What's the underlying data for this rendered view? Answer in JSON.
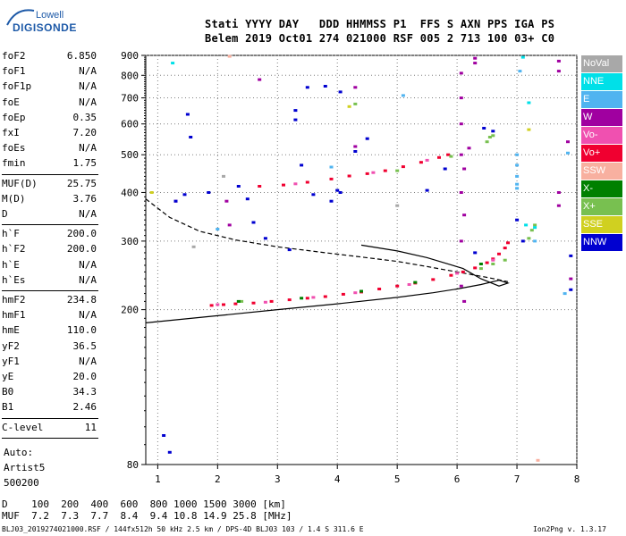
{
  "logo": {
    "line1": "Lowell",
    "line2": "DIGISONDE"
  },
  "header": {
    "row1": "Stati YYYY DAY   DDD HHMMSS P1  FFS S AXN PPS IGA PS",
    "row2": "Belem 2019 Oct01 274 021000 RSF 005 2 713 100 03+ C0"
  },
  "params_group1": [
    {
      "name": "foF2",
      "value": "6.850"
    },
    {
      "name": "foF1",
      "value": "N/A"
    },
    {
      "name": "foF1p",
      "value": "N/A"
    },
    {
      "name": "foE",
      "value": "N/A"
    },
    {
      "name": "foEp",
      "value": "0.35"
    },
    {
      "name": "fxI",
      "value": "7.20"
    },
    {
      "name": "foEs",
      "value": "N/A"
    },
    {
      "name": "fmin",
      "value": "1.75"
    }
  ],
  "params_group2": [
    {
      "name": "MUF(D)",
      "value": "25.75"
    },
    {
      "name": "M(D)",
      "value": "3.76"
    },
    {
      "name": "D",
      "value": "N/A"
    }
  ],
  "params_group3": [
    {
      "name": "h`F",
      "value": "200.0"
    },
    {
      "name": "h`F2",
      "value": "200.0"
    },
    {
      "name": "h`E",
      "value": "N/A"
    },
    {
      "name": "h`Es",
      "value": "N/A"
    }
  ],
  "params_group4": [
    {
      "name": "hmF2",
      "value": "234.8"
    },
    {
      "name": "hmF1",
      "value": "N/A"
    },
    {
      "name": "hmE",
      "value": "110.0"
    },
    {
      "name": "yF2",
      "value": "36.5"
    },
    {
      "name": "yF1",
      "value": "N/A"
    },
    {
      "name": "yE",
      "value": "20.0"
    },
    {
      "name": "B0",
      "value": "34.3"
    },
    {
      "name": "B1",
      "value": "2.46"
    }
  ],
  "params_group5": [
    {
      "name": "C-level",
      "value": "11"
    }
  ],
  "autoscaler": {
    "line1": "Auto:",
    "line2": "Artist5",
    "line3": "500200"
  },
  "footer": {
    "row1": "D    100  200  400  600  800 1000 1500 3000 [km]",
    "row2": "MUF  7.2  7.3  7.7  8.4  9.4 10.8 14.9 25.8 [MHz]",
    "row3": "BLJ03_2019274021000.RSF / 144fx512h 50 kHz 2.5 km / DPS-4D BLJ03 103 / 1.4 S 311.6 E",
    "version": "Ion2Png v. 1.3.17"
  },
  "legend": [
    {
      "label": "NoVal",
      "color": "#a8a8a8"
    },
    {
      "label": "NNE",
      "color": "#00e0e8"
    },
    {
      "label": "E",
      "color": "#50b4f0"
    },
    {
      "label": "W",
      "color": "#a000a0"
    },
    {
      "label": "Vo-",
      "color": "#f050b0"
    },
    {
      "label": "Vo+",
      "color": "#f00030"
    },
    {
      "label": "SSW",
      "color": "#f8b0a0"
    },
    {
      "label": "X-",
      "color": "#008000"
    },
    {
      "label": "X+",
      "color": "#78c050"
    },
    {
      "label": "SSE",
      "color": "#d0d020"
    },
    {
      "label": "NNW",
      "color": "#0000d0"
    }
  ],
  "chart_data": {
    "type": "scatter",
    "xlim": [
      0.8,
      8.0
    ],
    "ylim": [
      80,
      900
    ],
    "y_scale": "log",
    "grid": true,
    "x_ticks": [
      1,
      2,
      3,
      4,
      5,
      6,
      7,
      8
    ],
    "y_ticks": [
      80,
      200,
      300,
      400,
      500,
      600,
      700,
      800,
      900
    ],
    "series": [
      {
        "name": "Vo+",
        "color": "#f00030",
        "points": [
          [
            1.9,
            205
          ],
          [
            2.1,
            206
          ],
          [
            2.3,
            207
          ],
          [
            2.6,
            208
          ],
          [
            2.9,
            210
          ],
          [
            3.2,
            212
          ],
          [
            3.5,
            214
          ],
          [
            3.8,
            216
          ],
          [
            4.1,
            219
          ],
          [
            4.4,
            222
          ],
          [
            4.7,
            226
          ],
          [
            5.0,
            230
          ],
          [
            5.3,
            234
          ],
          [
            5.6,
            239
          ],
          [
            5.9,
            245
          ],
          [
            6.1,
            250
          ],
          [
            6.3,
            256
          ],
          [
            6.5,
            264
          ],
          [
            6.6,
            270
          ],
          [
            6.7,
            278
          ],
          [
            6.8,
            288
          ],
          [
            6.85,
            297
          ],
          [
            2.7,
            415
          ],
          [
            3.1,
            418
          ],
          [
            3.5,
            425
          ],
          [
            3.9,
            433
          ],
          [
            4.2,
            441
          ],
          [
            4.5,
            447
          ],
          [
            4.8,
            455
          ],
          [
            5.1,
            466
          ],
          [
            5.4,
            478
          ],
          [
            5.7,
            492
          ],
          [
            5.85,
            500
          ]
        ]
      },
      {
        "name": "Vo-",
        "color": "#f050b0",
        "points": [
          [
            2.0,
            206
          ],
          [
            2.8,
            209
          ],
          [
            3.6,
            215
          ],
          [
            4.3,
            221
          ],
          [
            5.2,
            232
          ],
          [
            6.0,
            248
          ],
          [
            6.6,
            268
          ],
          [
            3.3,
            421
          ],
          [
            4.6,
            450
          ],
          [
            5.5,
            484
          ]
        ]
      },
      {
        "name": "W",
        "color": "#a000a0",
        "points": [
          [
            6.07,
            230
          ],
          [
            6.07,
            300
          ],
          [
            6.07,
            400
          ],
          [
            6.07,
            500
          ],
          [
            6.07,
            600
          ],
          [
            6.07,
            700
          ],
          [
            6.07,
            810
          ],
          [
            6.12,
            210
          ],
          [
            6.12,
            350
          ],
          [
            6.12,
            460
          ],
          [
            6.2,
            520
          ],
          [
            6.3,
            885
          ],
          [
            6.3,
            860
          ],
          [
            7.7,
            870
          ],
          [
            7.7,
            820
          ],
          [
            7.7,
            400
          ],
          [
            7.7,
            370
          ],
          [
            7.85,
            540
          ],
          [
            7.9,
            240
          ],
          [
            4.3,
            525
          ],
          [
            4.3,
            745
          ],
          [
            2.15,
            380
          ],
          [
            2.2,
            330
          ],
          [
            1.3,
            380
          ],
          [
            2.7,
            780
          ]
        ]
      },
      {
        "name": "X+",
        "color": "#78c050",
        "points": [
          [
            6.4,
            255
          ],
          [
            6.6,
            262
          ],
          [
            6.8,
            268
          ],
          [
            7.2,
            305
          ],
          [
            7.25,
            320
          ],
          [
            7.3,
            330
          ],
          [
            6.5,
            540
          ],
          [
            6.55,
            555
          ],
          [
            6.6,
            560
          ],
          [
            4.3,
            675
          ],
          [
            2.4,
            210
          ],
          [
            5.9,
            495
          ],
          [
            5.0,
            455
          ]
        ]
      },
      {
        "name": "E",
        "color": "#50b4f0",
        "points": [
          [
            7.0,
            440
          ],
          [
            7.0,
            470
          ],
          [
            7.0,
            500
          ],
          [
            7.0,
            420
          ],
          [
            7.0,
            410
          ],
          [
            7.05,
            820
          ],
          [
            7.3,
            300
          ],
          [
            7.8,
            220
          ],
          [
            7.85,
            505
          ],
          [
            2.0,
            322
          ],
          [
            3.9,
            465
          ],
          [
            5.1,
            710
          ]
        ]
      },
      {
        "name": "NNW",
        "color": "#0000d0",
        "points": [
          [
            3.5,
            745
          ],
          [
            3.8,
            750
          ],
          [
            4.05,
            725
          ],
          [
            4.0,
            405
          ],
          [
            4.05,
            400
          ],
          [
            1.5,
            635
          ],
          [
            1.55,
            555
          ],
          [
            1.45,
            395
          ],
          [
            1.3,
            380
          ],
          [
            1.85,
            400
          ],
          [
            2.35,
            415
          ],
          [
            3.3,
            650
          ],
          [
            3.3,
            615
          ],
          [
            3.4,
            470
          ],
          [
            3.6,
            395
          ],
          [
            4.5,
            550
          ],
          [
            4.3,
            510
          ],
          [
            3.9,
            380
          ],
          [
            2.5,
            385
          ],
          [
            2.6,
            335
          ],
          [
            2.8,
            305
          ],
          [
            3.2,
            285
          ],
          [
            1.2,
            86
          ],
          [
            7.0,
            340
          ],
          [
            7.1,
            300
          ],
          [
            6.3,
            280
          ],
          [
            6.45,
            585
          ],
          [
            6.6,
            575
          ],
          [
            5.8,
            460
          ],
          [
            5.5,
            405
          ],
          [
            7.9,
            275
          ],
          [
            7.9,
            225
          ],
          [
            1.1,
            95
          ]
        ]
      },
      {
        "name": "NNE",
        "color": "#00e0e8",
        "points": [
          [
            1.25,
            860
          ],
          [
            7.1,
            890
          ],
          [
            7.2,
            680
          ],
          [
            7.3,
            325
          ],
          [
            7.15,
            330
          ]
        ]
      },
      {
        "name": "X-",
        "color": "#008000",
        "points": [
          [
            2.35,
            210
          ],
          [
            3.4,
            214
          ],
          [
            4.4,
            223
          ],
          [
            5.3,
            235
          ],
          [
            6.4,
            262
          ]
        ]
      },
      {
        "name": "SSE",
        "color": "#d0d020",
        "points": [
          [
            0.9,
            400
          ],
          [
            7.2,
            580
          ],
          [
            4.2,
            665
          ]
        ]
      },
      {
        "name": "SSW",
        "color": "#f8b0a0",
        "points": [
          [
            7.35,
            82
          ],
          [
            2.2,
            895
          ]
        ]
      },
      {
        "name": "NoVal",
        "color": "#a8a8a8",
        "points": [
          [
            2.1,
            440
          ],
          [
            5.0,
            370
          ],
          [
            1.6,
            290
          ]
        ]
      }
    ],
    "profile_solid": [
      [
        0.8,
        185
      ],
      [
        2,
        193
      ],
      [
        3,
        200
      ],
      [
        4,
        207
      ],
      [
        5,
        215
      ],
      [
        5.6,
        221
      ],
      [
        6.0,
        226
      ],
      [
        6.4,
        232
      ],
      [
        6.7,
        238
      ],
      [
        6.85,
        234
      ],
      [
        6.7,
        230
      ],
      [
        6.4,
        240
      ],
      [
        6.1,
        255
      ],
      [
        5.5,
        272
      ],
      [
        5.0,
        283
      ],
      [
        4.4,
        293
      ]
    ],
    "profile_dashed": [
      [
        0.8,
        385
      ],
      [
        1.2,
        345
      ],
      [
        1.7,
        318
      ],
      [
        2.3,
        302
      ],
      [
        3.0,
        290
      ],
      [
        3.8,
        280
      ],
      [
        4.4,
        273
      ],
      [
        5.0,
        266
      ],
      [
        5.5,
        258
      ],
      [
        6.0,
        250
      ],
      [
        6.5,
        242
      ],
      [
        6.85,
        236
      ]
    ]
  }
}
